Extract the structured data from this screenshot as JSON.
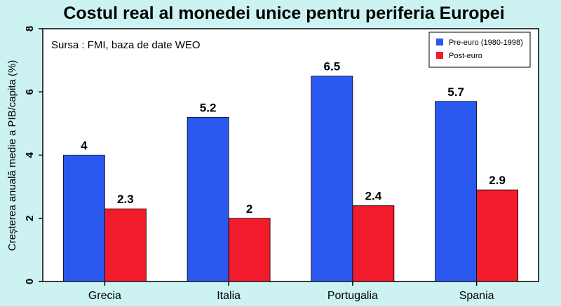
{
  "chart_data": {
    "type": "bar",
    "title": "Costul real al monedei unice pentru periferia Europei",
    "source": "Sursa : FMI, baza de date WEO",
    "xlabel": "",
    "ylabel": "Creșterea anuală medie a PIB/capita (%)",
    "ylim": [
      0,
      8
    ],
    "yticks": [
      0,
      2,
      4,
      6,
      8
    ],
    "categories": [
      "Grecia",
      "Italia",
      "Portugalia",
      "Spania"
    ],
    "series": [
      {
        "name": "Pre-euro (1980-1998)",
        "color": "#2b59f0",
        "values": [
          4,
          5.2,
          6.5,
          5.7
        ],
        "labels": [
          "4",
          "5.2",
          "6.5",
          "5.7"
        ]
      },
      {
        "name": "Post-euro",
        "color": "#f21b2c",
        "values": [
          2.3,
          2,
          2.4,
          2.9
        ],
        "labels": [
          "2.3",
          "2",
          "2.4",
          "2.9"
        ]
      }
    ],
    "legend_position": "top-right",
    "grid": false
  },
  "colors": {
    "background": "#ccf2f2",
    "plot_background": "#ffffff",
    "axis": "#000000"
  }
}
